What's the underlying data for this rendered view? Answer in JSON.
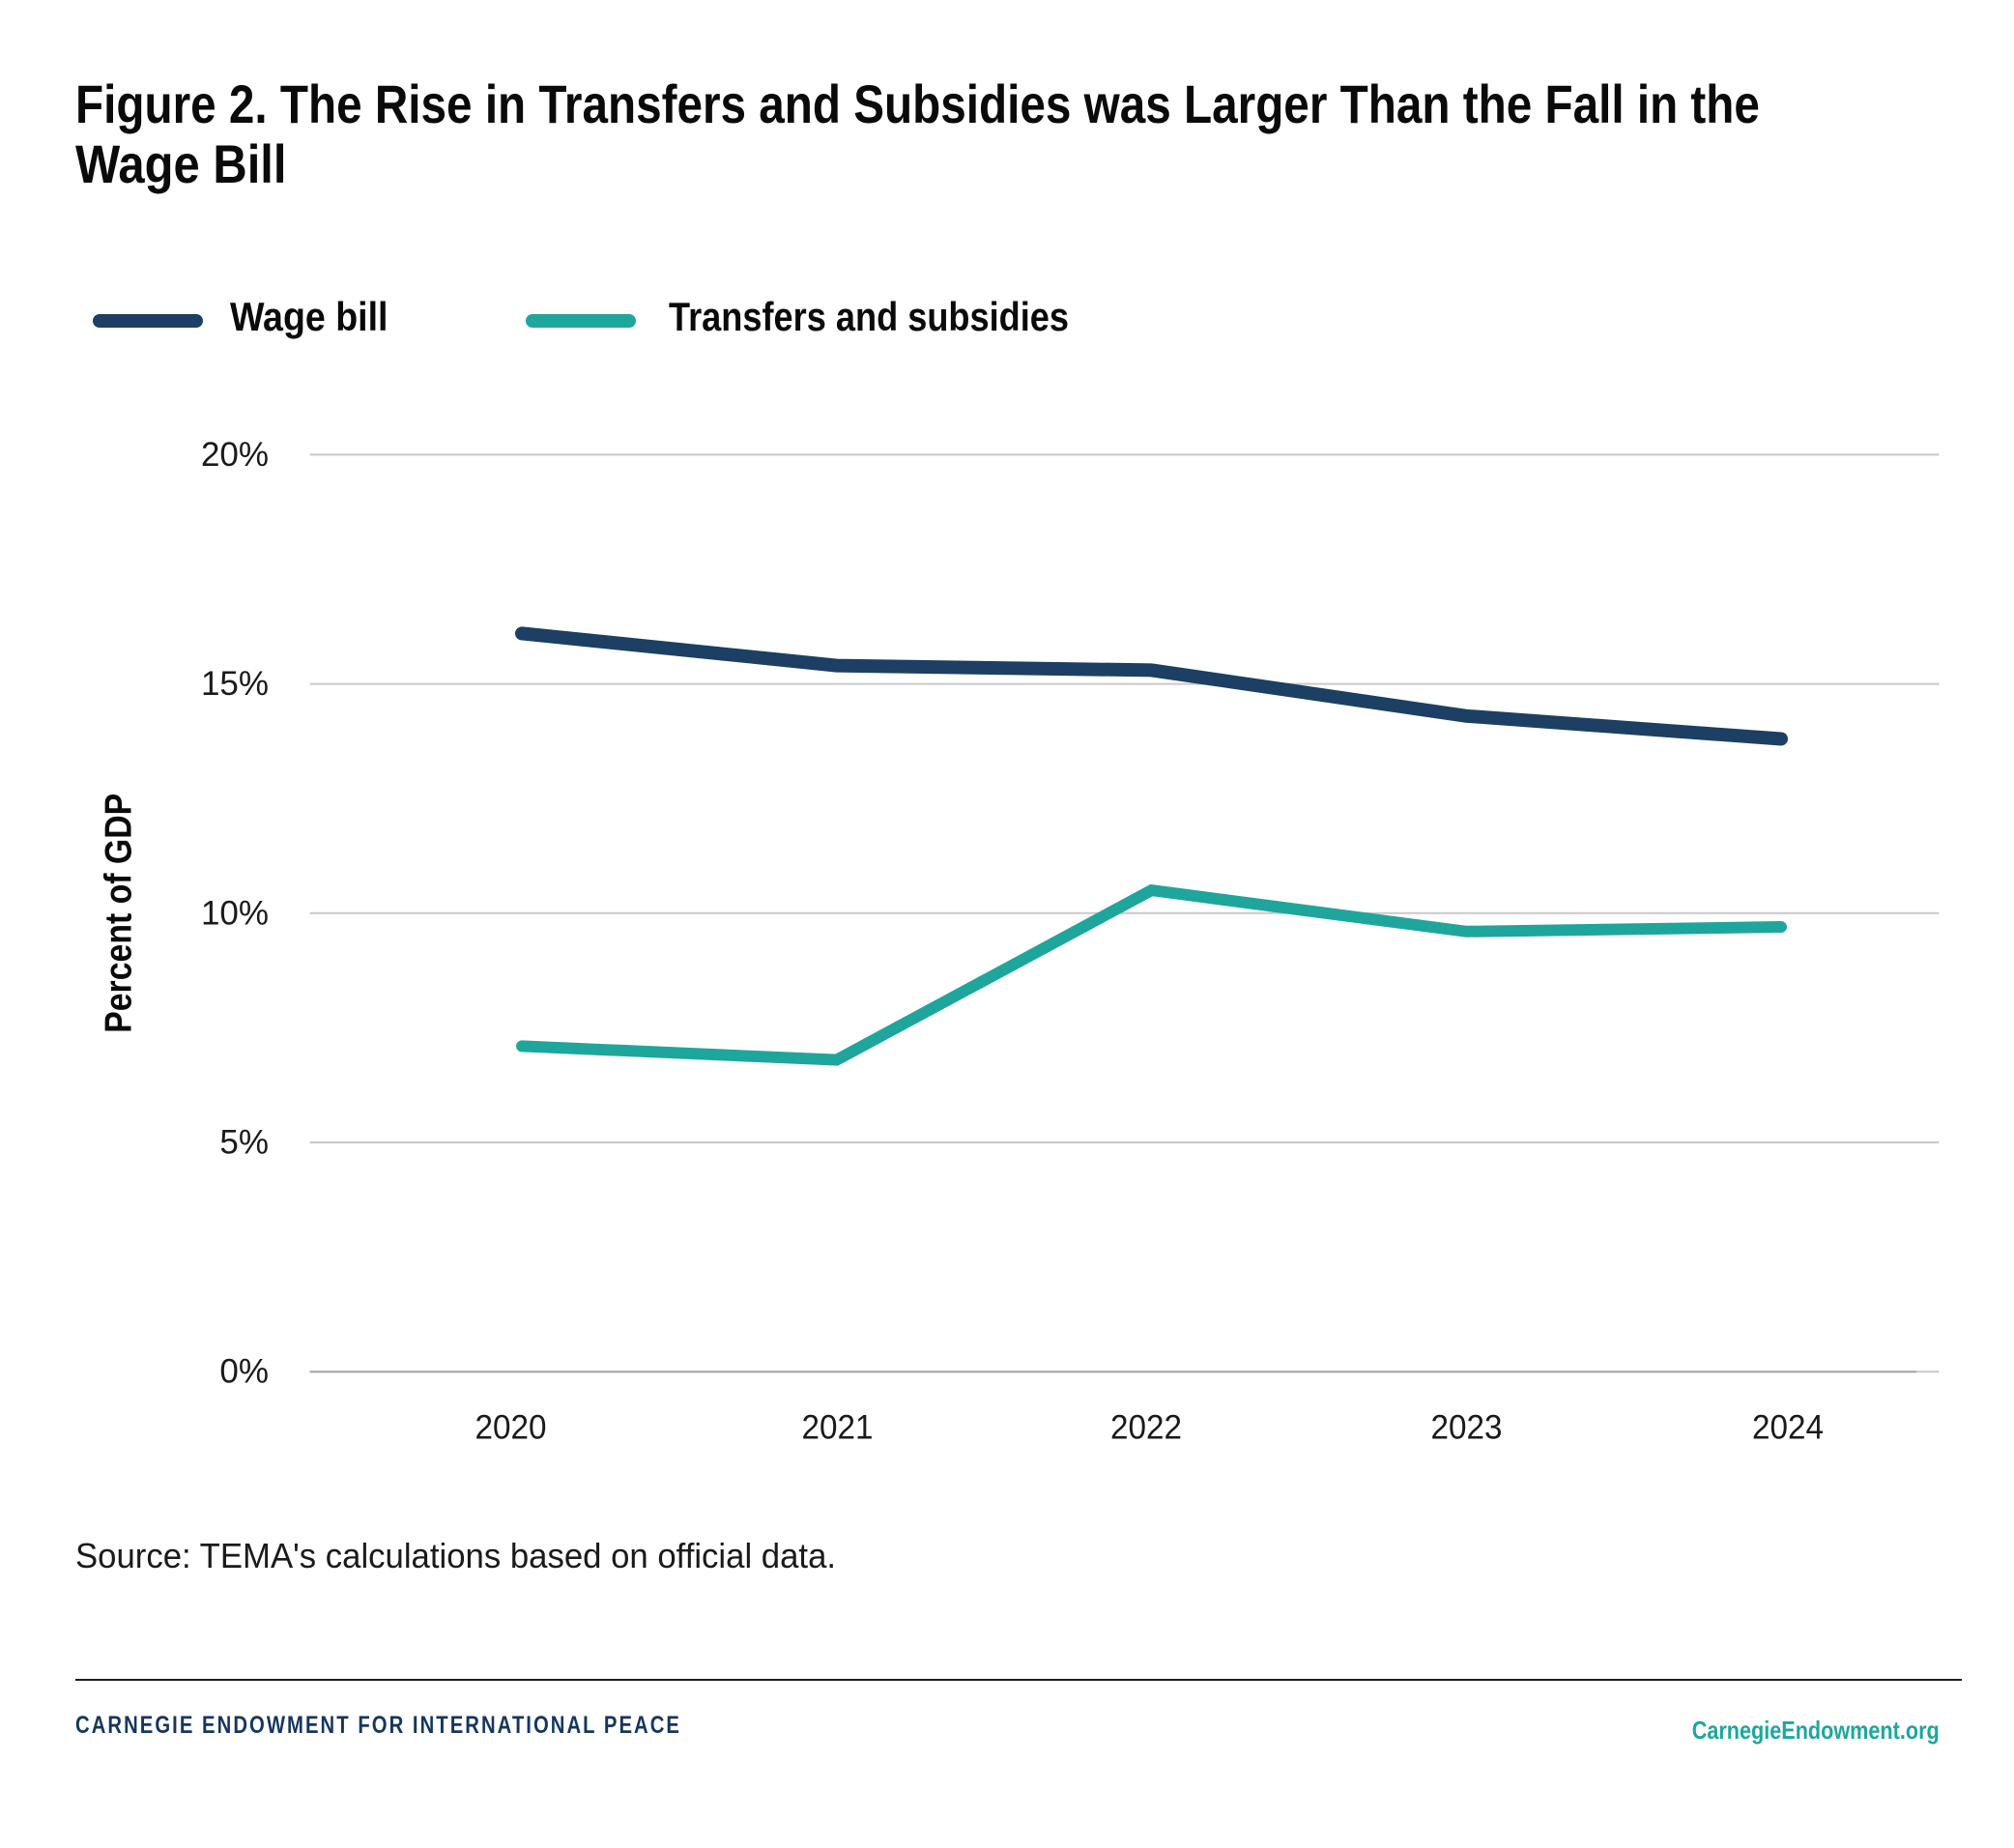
{
  "page": {
    "background": "#ffffff"
  },
  "title": {
    "text": "Figure 2. The Rise in Transfers and Subsidies was Larger Than the Fall in the Wage Bill",
    "lines": [
      "Figure 2. The Rise in Transfers and Subsidies was Larger Than the Fall in the",
      "Wage Bill"
    ]
  },
  "legend": {
    "items": [
      {
        "label": "Wage bill",
        "color": "#1c3f63"
      },
      {
        "label": "Transfers and subsidies",
        "color": "#1ea69d"
      }
    ]
  },
  "chart_data": {
    "type": "line",
    "x": [
      "2020",
      "2021",
      "2022",
      "2023",
      "2024"
    ],
    "series": [
      {
        "name": "Wage bill",
        "color": "#1c3f63",
        "values": [
          16.1,
          15.4,
          15.3,
          14.3,
          13.8
        ]
      },
      {
        "name": "Transfers and subsidies",
        "color": "#1ea69d",
        "values": [
          7.1,
          6.8,
          10.5,
          9.6,
          9.7
        ]
      }
    ],
    "title": "Figure 2. The Rise in Transfers and Subsidies was Larger Than the Fall in the Wage Bill",
    "xlabel": "",
    "ylabel": "Percent of GDP",
    "ylim": [
      0,
      20
    ],
    "yticks": [
      {
        "value": 0,
        "label": "0%"
      },
      {
        "value": 5,
        "label": "5%"
      },
      {
        "value": 10,
        "label": "10%"
      },
      {
        "value": 15,
        "label": "15%"
      },
      {
        "value": 20,
        "label": "20%"
      }
    ],
    "grid": true,
    "gridline_color": "#c9c9c9",
    "axis_line_color": "#a7a7a7",
    "tick_label_color": "#1a1a1a",
    "legend_position": "top-left"
  },
  "source_note": "Source: TEMA's calculations based on official data.",
  "footer": {
    "left": "CARNEGIE ENDOWMENT FOR INTERNATIONAL PEACE",
    "left_color": "#16365d",
    "right": "CarnegieEndowment.org",
    "right_color": "#1ea69d"
  }
}
